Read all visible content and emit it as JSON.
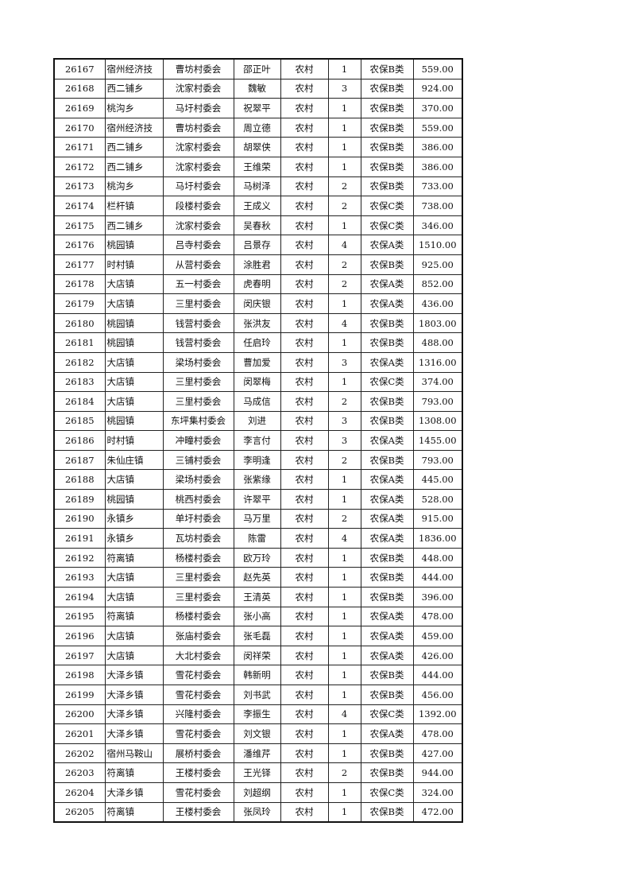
{
  "table": {
    "rows": [
      [
        "26167",
        "宿州经济技",
        "曹坊村委会",
        "邵正叶",
        "农村",
        "1",
        "农保B类",
        "559.00"
      ],
      [
        "26168",
        "西二铺乡",
        "沈家村委会",
        "魏敏",
        "农村",
        "3",
        "农保B类",
        "924.00"
      ],
      [
        "26169",
        "桃沟乡",
        "马圩村委会",
        "祝翠平",
        "农村",
        "1",
        "农保B类",
        "370.00"
      ],
      [
        "26170",
        "宿州经济技",
        "曹坊村委会",
        "周立德",
        "农村",
        "1",
        "农保B类",
        "559.00"
      ],
      [
        "26171",
        "西二铺乡",
        "沈家村委会",
        "胡翠侠",
        "农村",
        "1",
        "农保B类",
        "386.00"
      ],
      [
        "26172",
        "西二铺乡",
        "沈家村委会",
        "王维荣",
        "农村",
        "1",
        "农保B类",
        "386.00"
      ],
      [
        "26173",
        "桃沟乡",
        "马圩村委会",
        "马树泽",
        "农村",
        "2",
        "农保B类",
        "733.00"
      ],
      [
        "26174",
        "栏杆镇",
        "段楼村委会",
        "王成义",
        "农村",
        "2",
        "农保C类",
        "738.00"
      ],
      [
        "26175",
        "西二铺乡",
        "沈家村委会",
        "吴春秋",
        "农村",
        "1",
        "农保C类",
        "346.00"
      ],
      [
        "26176",
        "桃园镇",
        "吕寺村委会",
        "吕景存",
        "农村",
        "4",
        "农保A类",
        "1510.00"
      ],
      [
        "26177",
        "时村镇",
        "从营村委会",
        "涂胜君",
        "农村",
        "2",
        "农保B类",
        "925.00"
      ],
      [
        "26178",
        "大店镇",
        "五一村委会",
        "虎春明",
        "农村",
        "2",
        "农保A类",
        "852.00"
      ],
      [
        "26179",
        "大店镇",
        "三里村委会",
        "闵庆银",
        "农村",
        "1",
        "农保A类",
        "436.00"
      ],
      [
        "26180",
        "桃园镇",
        "钱营村委会",
        "张洪友",
        "农村",
        "4",
        "农保B类",
        "1803.00"
      ],
      [
        "26181",
        "桃园镇",
        "钱营村委会",
        "任启玲",
        "农村",
        "1",
        "农保B类",
        "488.00"
      ],
      [
        "26182",
        "大店镇",
        "梁场村委会",
        "曹加爱",
        "农村",
        "3",
        "农保A类",
        "1316.00"
      ],
      [
        "26183",
        "大店镇",
        "三里村委会",
        "闵翠梅",
        "农村",
        "1",
        "农保C类",
        "374.00"
      ],
      [
        "26184",
        "大店镇",
        "三里村委会",
        "马成信",
        "农村",
        "2",
        "农保B类",
        "793.00"
      ],
      [
        "26185",
        "桃园镇",
        "东坪集村委会",
        "刘进",
        "农村",
        "3",
        "农保B类",
        "1308.00"
      ],
      [
        "26186",
        "时村镇",
        "冲疃村委会",
        "李言付",
        "农村",
        "3",
        "农保A类",
        "1455.00"
      ],
      [
        "26187",
        "朱仙庄镇",
        "三铺村委会",
        "李明逢",
        "农村",
        "2",
        "农保B类",
        "793.00"
      ],
      [
        "26188",
        "大店镇",
        "梁场村委会",
        "张紫缘",
        "农村",
        "1",
        "农保A类",
        "445.00"
      ],
      [
        "26189",
        "桃园镇",
        "桃西村委会",
        "许翠平",
        "农村",
        "1",
        "农保A类",
        "528.00"
      ],
      [
        "26190",
        "永镇乡",
        "单圩村委会",
        "马万里",
        "农村",
        "2",
        "农保A类",
        "915.00"
      ],
      [
        "26191",
        "永镇乡",
        "瓦坊村委会",
        "陈雷",
        "农村",
        "4",
        "农保A类",
        "1836.00"
      ],
      [
        "26192",
        "符离镇",
        "杨楼村委会",
        "欧万玲",
        "农村",
        "1",
        "农保B类",
        "448.00"
      ],
      [
        "26193",
        "大店镇",
        "三里村委会",
        "赵先英",
        "农村",
        "1",
        "农保B类",
        "444.00"
      ],
      [
        "26194",
        "大店镇",
        "三里村委会",
        "王清英",
        "农村",
        "1",
        "农保B类",
        "396.00"
      ],
      [
        "26195",
        "符离镇",
        "杨楼村委会",
        "张小高",
        "农村",
        "1",
        "农保A类",
        "478.00"
      ],
      [
        "26196",
        "大店镇",
        "张庙村委会",
        "张毛磊",
        "农村",
        "1",
        "农保A类",
        "459.00"
      ],
      [
        "26197",
        "大店镇",
        "大北村委会",
        "闵祥荣",
        "农村",
        "1",
        "农保A类",
        "426.00"
      ],
      [
        "26198",
        "大泽乡镇",
        "雪花村委会",
        "韩新明",
        "农村",
        "1",
        "农保B类",
        "444.00"
      ],
      [
        "26199",
        "大泽乡镇",
        "雪花村委会",
        "刘书武",
        "农村",
        "1",
        "农保B类",
        "456.00"
      ],
      [
        "26200",
        "大泽乡镇",
        "兴隆村委会",
        "李振生",
        "农村",
        "4",
        "农保C类",
        "1392.00"
      ],
      [
        "26201",
        "大泽乡镇",
        "雪花村委会",
        "刘文银",
        "农村",
        "1",
        "农保A类",
        "478.00"
      ],
      [
        "26202",
        "宿州马鞍山",
        "展桥村委会",
        "潘维芹",
        "农村",
        "1",
        "农保B类",
        "427.00"
      ],
      [
        "26203",
        "符离镇",
        "王楼村委会",
        "王光铎",
        "农村",
        "2",
        "农保B类",
        "944.00"
      ],
      [
        "26204",
        "大泽乡镇",
        "雪花村委会",
        "刘超纲",
        "农村",
        "1",
        "农保C类",
        "324.00"
      ],
      [
        "26205",
        "符离镇",
        "王楼村委会",
        "张凤玲",
        "农村",
        "1",
        "农保B类",
        "472.00"
      ]
    ]
  }
}
